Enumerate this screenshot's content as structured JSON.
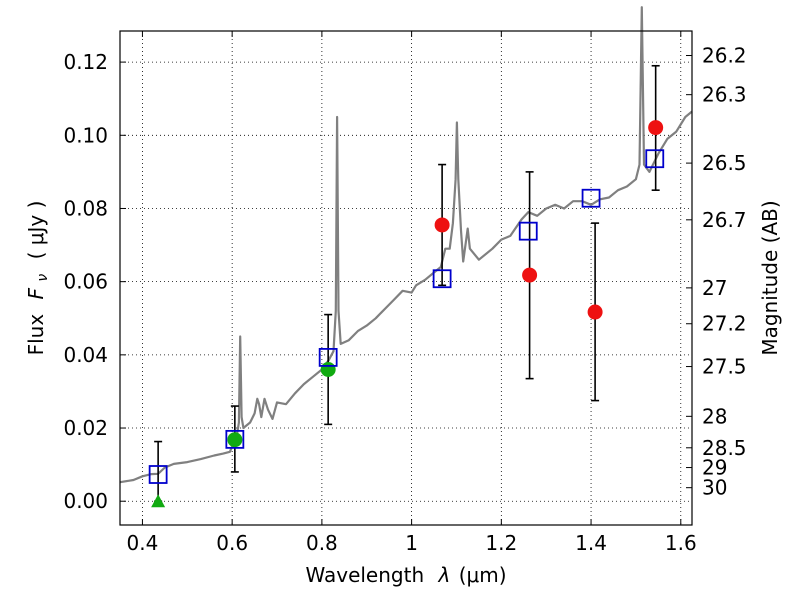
{
  "chart_data": {
    "type": "scatter",
    "xlabel": "Wavelength",
    "xlabel_symbol": "λ",
    "xlabel_unit": "(μm)",
    "ylabel": "Flux",
    "ylabel_symbol": "F",
    "ylabel_subscript": "ν",
    "ylabel_unit": "( μJy )",
    "y2label": "Magnitude (AB)",
    "xlim": [
      0.35,
      1.625
    ],
    "ylim": [
      -0.0065,
      0.1285
    ],
    "grid": true,
    "x_ticks": [
      {
        "v": 0.4,
        "label": "0.4"
      },
      {
        "v": 0.6,
        "label": "0.6"
      },
      {
        "v": 0.8,
        "label": "0.8"
      },
      {
        "v": 1.0,
        "label": "1"
      },
      {
        "v": 1.2,
        "label": "1.2"
      },
      {
        "v": 1.4,
        "label": "1.4"
      },
      {
        "v": 1.6,
        "label": "1.6"
      }
    ],
    "y_ticks": [
      {
        "v": 0.0,
        "label": "0.00"
      },
      {
        "v": 0.02,
        "label": "0.02"
      },
      {
        "v": 0.04,
        "label": "0.04"
      },
      {
        "v": 0.06,
        "label": "0.06"
      },
      {
        "v": 0.08,
        "label": "0.08"
      },
      {
        "v": 0.1,
        "label": "0.10"
      },
      {
        "v": 0.12,
        "label": "0.12"
      }
    ],
    "mag_ticks": [
      {
        "label": "26.2",
        "flux": 0.1218
      },
      {
        "label": "26.3",
        "flux": 0.1111
      },
      {
        "label": "26.5",
        "flux": 0.0924
      },
      {
        "label": "26.7",
        "flux": 0.0769
      },
      {
        "label": "27",
        "flux": 0.0583
      },
      {
        "label": "27.2",
        "flux": 0.0485
      },
      {
        "label": "27.5",
        "flux": 0.0368
      },
      {
        "label": "28",
        "flux": 0.0232
      },
      {
        "label": "28.5",
        "flux": 0.0146
      },
      {
        "label": "29",
        "flux": 0.0092
      },
      {
        "label": "30",
        "flux": 0.0037
      }
    ],
    "colors": {
      "model": "#808080",
      "model_photometry": "#0000cc",
      "observed": "#ee1111",
      "upper": "#11aa11",
      "errorbar": "#000000",
      "grid": "#000000"
    },
    "series": [
      {
        "kind": "model_photometry_squares",
        "points": [
          {
            "x": 0.435,
            "y": 0.0073
          },
          {
            "x": 0.606,
            "y": 0.0169
          },
          {
            "x": 0.814,
            "y": 0.0393
          },
          {
            "x": 1.068,
            "y": 0.0608
          },
          {
            "x": 1.26,
            "y": 0.0738
          },
          {
            "x": 1.4,
            "y": 0.0828
          },
          {
            "x": 1.542,
            "y": 0.0936
          }
        ]
      },
      {
        "kind": "observed_points",
        "points": [
          {
            "x": 1.068,
            "y": 0.0755,
            "lo": 0.059,
            "hi": 0.092
          },
          {
            "x": 1.263,
            "y": 0.0618,
            "lo": 0.0335,
            "hi": 0.09
          },
          {
            "x": 1.409,
            "y": 0.0517,
            "lo": 0.0275,
            "hi": 0.076
          },
          {
            "x": 1.544,
            "y": 0.1021,
            "lo": 0.085,
            "hi": 0.119
          }
        ]
      },
      {
        "kind": "green_circles",
        "points": [
          {
            "x": 0.606,
            "y": 0.0168,
            "lo": 0.008,
            "hi": 0.026
          },
          {
            "x": 0.814,
            "y": 0.036,
            "lo": 0.021,
            "hi": 0.051
          }
        ]
      },
      {
        "kind": "green_triangle",
        "points": [
          {
            "x": 0.435,
            "y": 0.0,
            "lo": 0.0,
            "hi": 0.0163
          }
        ]
      }
    ],
    "model_spectrum": [
      [
        0.35,
        0.0052
      ],
      [
        0.38,
        0.0058
      ],
      [
        0.4,
        0.0068
      ],
      [
        0.42,
        0.0074
      ],
      [
        0.435,
        0.0075
      ],
      [
        0.45,
        0.0092
      ],
      [
        0.47,
        0.0102
      ],
      [
        0.5,
        0.0107
      ],
      [
        0.53,
        0.0115
      ],
      [
        0.56,
        0.0125
      ],
      [
        0.58,
        0.013
      ],
      [
        0.595,
        0.0135
      ],
      [
        0.6,
        0.015
      ],
      [
        0.61,
        0.0175
      ],
      [
        0.615,
        0.0215
      ],
      [
        0.618,
        0.045
      ],
      [
        0.621,
        0.023
      ],
      [
        0.625,
        0.02
      ],
      [
        0.64,
        0.0215
      ],
      [
        0.65,
        0.024
      ],
      [
        0.656,
        0.028
      ],
      [
        0.66,
        0.0265
      ],
      [
        0.665,
        0.023
      ],
      [
        0.672,
        0.028
      ],
      [
        0.68,
        0.025
      ],
      [
        0.69,
        0.0225
      ],
      [
        0.7,
        0.027
      ],
      [
        0.72,
        0.0265
      ],
      [
        0.74,
        0.0295
      ],
      [
        0.76,
        0.032
      ],
      [
        0.78,
        0.034
      ],
      [
        0.8,
        0.036
      ],
      [
        0.815,
        0.0385
      ],
      [
        0.826,
        0.041
      ],
      [
        0.831,
        0.052
      ],
      [
        0.834,
        0.105
      ],
      [
        0.837,
        0.052
      ],
      [
        0.842,
        0.043
      ],
      [
        0.86,
        0.044
      ],
      [
        0.88,
        0.0465
      ],
      [
        0.9,
        0.048
      ],
      [
        0.92,
        0.05
      ],
      [
        0.94,
        0.0525
      ],
      [
        0.96,
        0.055
      ],
      [
        0.98,
        0.0575
      ],
      [
        1.0,
        0.057
      ],
      [
        1.01,
        0.059
      ],
      [
        1.03,
        0.0605
      ],
      [
        1.05,
        0.0625
      ],
      [
        1.065,
        0.064
      ],
      [
        1.075,
        0.069
      ],
      [
        1.085,
        0.069
      ],
      [
        1.092,
        0.076
      ],
      [
        1.098,
        0.088
      ],
      [
        1.101,
        0.1035
      ],
      [
        1.104,
        0.088
      ],
      [
        1.11,
        0.074
      ],
      [
        1.115,
        0.0655
      ],
      [
        1.125,
        0.0745
      ],
      [
        1.13,
        0.069
      ],
      [
        1.15,
        0.066
      ],
      [
        1.18,
        0.069
      ],
      [
        1.2,
        0.0715
      ],
      [
        1.22,
        0.0725
      ],
      [
        1.245,
        0.077
      ],
      [
        1.26,
        0.079
      ],
      [
        1.28,
        0.078
      ],
      [
        1.3,
        0.08
      ],
      [
        1.32,
        0.081
      ],
      [
        1.34,
        0.08
      ],
      [
        1.36,
        0.082
      ],
      [
        1.38,
        0.082
      ],
      [
        1.4,
        0.081
      ],
      [
        1.42,
        0.0825
      ],
      [
        1.44,
        0.083
      ],
      [
        1.46,
        0.085
      ],
      [
        1.48,
        0.086
      ],
      [
        1.5,
        0.088
      ],
      [
        1.508,
        0.092
      ],
      [
        1.513,
        0.135
      ],
      [
        1.518,
        0.092
      ],
      [
        1.53,
        0.09
      ],
      [
        1.55,
        0.095
      ],
      [
        1.57,
        0.099
      ],
      [
        1.59,
        0.101
      ],
      [
        1.61,
        0.105
      ],
      [
        1.625,
        0.1065
      ]
    ]
  }
}
